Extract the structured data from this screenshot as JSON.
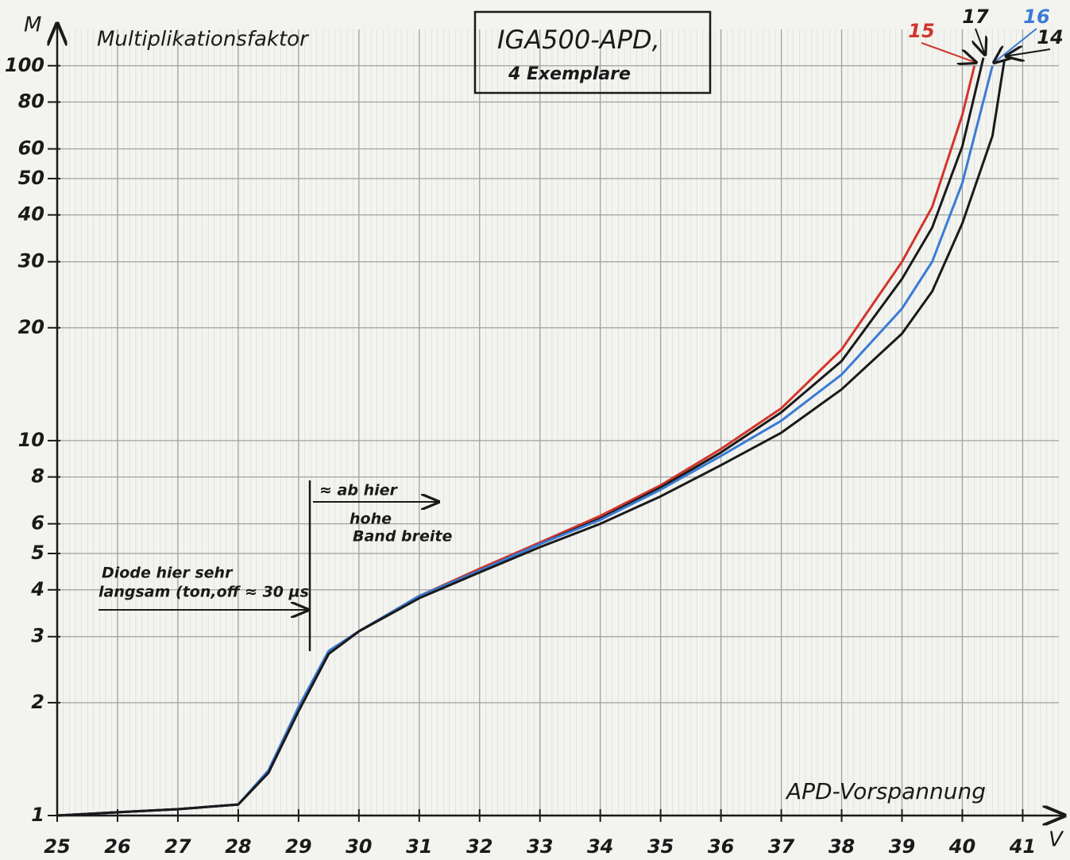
{
  "chart_data": {
    "type": "line",
    "title": "IGA500-APD,",
    "subtitle": "4 Exemplare",
    "y_label": "M",
    "y_caption": "Multiplikationsfaktor",
    "x_label": "APD-Vorspannung",
    "x_unit": "V",
    "annotations": [
      "≈ ab hier",
      "hohe",
      "Band breite",
      "Diode hier sehr",
      "langsam (ton,off ≈ 30 µs"
    ],
    "log_y": true,
    "grid": true,
    "xlim": [
      25,
      41.6
    ],
    "ylim": [
      1,
      125
    ],
    "xticks": [
      25,
      26,
      27,
      28,
      29,
      30,
      31,
      32,
      33,
      34,
      35,
      36,
      37,
      38,
      39,
      40,
      41
    ],
    "yticks": [
      1,
      2,
      3,
      4,
      5,
      6,
      8,
      10,
      20,
      30,
      40,
      50,
      60,
      80,
      100
    ],
    "series": [
      {
        "name": "15",
        "color": "#d2352b",
        "x": [
          25,
          26,
          27,
          28,
          28.5,
          29,
          29.5,
          30,
          31,
          32,
          33,
          34,
          35,
          36,
          37,
          38,
          39,
          39.5,
          40,
          40.2
        ],
        "values": [
          1,
          1.02,
          1.04,
          1.07,
          1.3,
          1.9,
          2.7,
          3.1,
          3.85,
          4.55,
          5.35,
          6.3,
          7.6,
          9.5,
          12.2,
          17.5,
          30,
          42,
          74,
          100
        ]
      },
      {
        "name": "17",
        "color": "#1a1a1a",
        "x": [
          25,
          26,
          27,
          28,
          28.5,
          29,
          29.5,
          30,
          31,
          32,
          33,
          34,
          35,
          36,
          37,
          38,
          39,
          39.5,
          40,
          40.35
        ],
        "values": [
          1,
          1.02,
          1.04,
          1.07,
          1.3,
          1.9,
          2.7,
          3.1,
          3.85,
          4.5,
          5.3,
          6.2,
          7.5,
          9.3,
          11.9,
          16.3,
          27,
          37,
          61,
          105
        ]
      },
      {
        "name": "16",
        "color": "#3a7bd5",
        "x": [
          25,
          26,
          27,
          28,
          28.5,
          29,
          29.5,
          30,
          31,
          32,
          33,
          34,
          35,
          36,
          37,
          38,
          39,
          39.5,
          40,
          40.5
        ],
        "values": [
          1,
          1.02,
          1.04,
          1.07,
          1.32,
          1.95,
          2.75,
          3.1,
          3.85,
          4.5,
          5.3,
          6.15,
          7.4,
          9.1,
          11.3,
          15,
          22.5,
          30,
          48.7,
          100
        ]
      },
      {
        "name": "14",
        "color": "#1a1a1a",
        "x": [
          25,
          26,
          27,
          28,
          28.5,
          29,
          29.5,
          30,
          31,
          32,
          33,
          34,
          35,
          36,
          37,
          38,
          39,
          39.5,
          40,
          40.5,
          40.7
        ],
        "values": [
          1,
          1.02,
          1.04,
          1.07,
          1.3,
          1.9,
          2.7,
          3.1,
          3.8,
          4.45,
          5.2,
          6,
          7.1,
          8.6,
          10.5,
          13.7,
          19.3,
          25,
          38,
          65,
          104
        ]
      }
    ]
  }
}
